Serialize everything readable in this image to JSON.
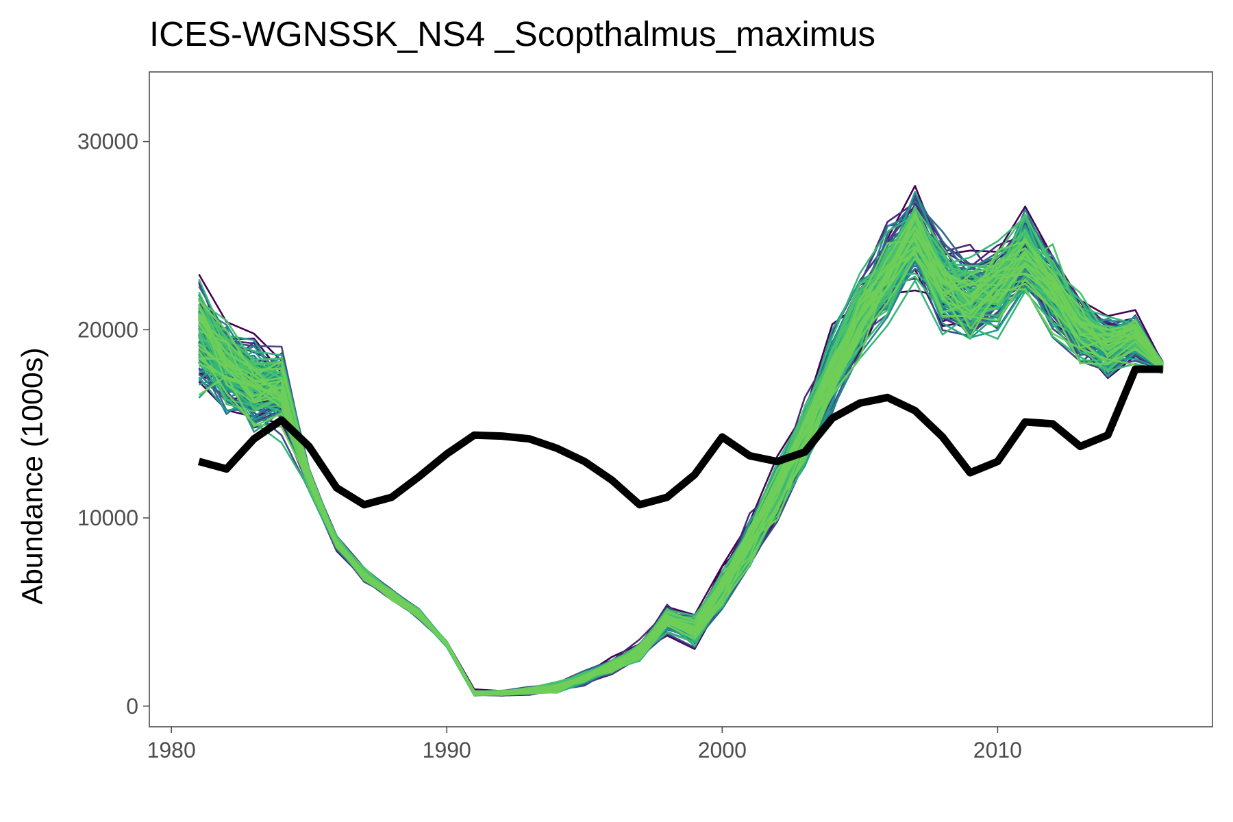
{
  "chart_data": {
    "type": "line",
    "title": "ICES-WGNSSK_NS4 _Scopthalmus_maximus",
    "xlabel": "",
    "ylabel": "Abundance (1000s)",
    "xlim": [
      1979.2,
      2017.8
    ],
    "ylim": [
      -1100,
      33700
    ],
    "x_ticks": [
      1980,
      1990,
      2000,
      2010
    ],
    "x_tick_labels": [
      "1980",
      "1990",
      "2000",
      "2010"
    ],
    "y_ticks": [
      0,
      10000,
      20000,
      30000
    ],
    "y_tick_labels": [
      "0",
      "10000",
      "20000",
      "30000"
    ],
    "grid": false,
    "legend": "none",
    "x": [
      1981,
      1982,
      1983,
      1984,
      1985,
      1986,
      1987,
      1988,
      1989,
      1990,
      1991,
      1992,
      1993,
      1994,
      1995,
      1996,
      1997,
      1998,
      1999,
      2000,
      2001,
      2002,
      2003,
      2004,
      2005,
      2006,
      2007,
      2008,
      2009,
      2010,
      2011,
      2012,
      2013,
      2014,
      2015,
      2016
    ],
    "series": [
      {
        "role": "observed",
        "color": "#000000",
        "values": [
          13000,
          12600,
          14200,
          15200,
          13800,
          11600,
          10700,
          11100,
          12200,
          13400,
          14400,
          14350,
          14200,
          13700,
          13000,
          12000,
          10700,
          11100,
          12300,
          14300,
          13300,
          13000,
          13500,
          15300,
          16100,
          16400,
          15700,
          14300,
          12400,
          13000,
          15100,
          15000,
          13800,
          14400,
          17900,
          17900
        ]
      },
      {
        "role": "simulations-center",
        "values": [
          19800,
          18000,
          17000,
          16800,
          12000,
          8700,
          7000,
          5900,
          4900,
          3300,
          700,
          700,
          800,
          1000,
          1500,
          2100,
          2900,
          4600,
          4000,
          6200,
          8600,
          11400,
          14500,
          17600,
          20600,
          22900,
          25000,
          22500,
          21500,
          22200,
          24000,
          22000,
          20000,
          19200,
          19600,
          18000
        ]
      },
      {
        "role": "simulations-spread",
        "values": [
          4200,
          3800,
          3500,
          3300,
          800,
          500,
          500,
          400,
          400,
          200,
          200,
          200,
          300,
          400,
          500,
          600,
          700,
          1000,
          1200,
          1500,
          1800,
          2200,
          2600,
          2900,
          3300,
          3500,
          3700,
          3500,
          3400,
          3300,
          3300,
          3100,
          2700,
          2200,
          1800,
          400
        ]
      }
    ],
    "simulation_count": 160,
    "simulation_palette": [
      "#440154",
      "#482878",
      "#3e4989",
      "#31688e",
      "#26828e",
      "#1f9e89",
      "#35b779",
      "#4ac16d",
      "#6ece58"
    ]
  }
}
